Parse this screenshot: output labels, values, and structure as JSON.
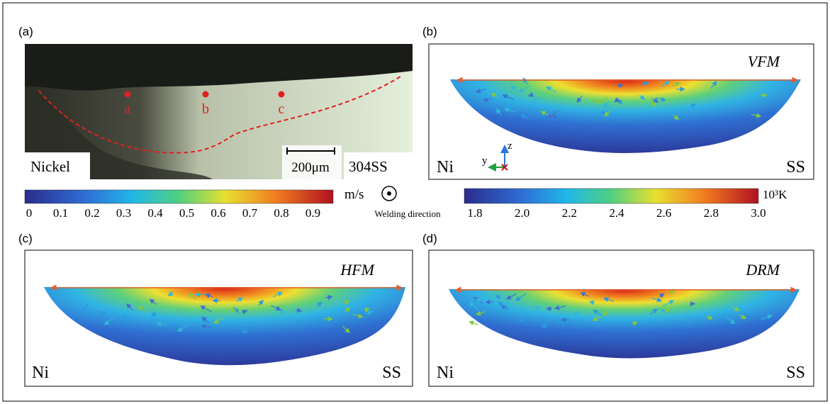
{
  "panel_a": {
    "label": "(a)",
    "points": [
      "a",
      "b",
      "c"
    ],
    "left_label": "Nickel",
    "right_label": "304SS",
    "scale_bar": "200μm"
  },
  "panel_b": {
    "label": "(b)",
    "model": "VFM",
    "left": "Ni",
    "right": "SS",
    "axes": [
      "z",
      "y"
    ]
  },
  "panel_c": {
    "label": "(c)",
    "model": "HFM",
    "left": "Ni",
    "right": "SS"
  },
  "panel_d": {
    "label": "(d)",
    "model": "DRM",
    "left": "Ni",
    "right": "SS"
  },
  "velocity_bar": {
    "unit": "m/s",
    "ticks": [
      "0",
      "0.1",
      "0.2",
      "0.3",
      "0.4",
      "0.5",
      "0.6",
      "0.7",
      "0.8",
      "0.9"
    ]
  },
  "welding_direction": "Welding direction",
  "temperature_bar": {
    "unit": "10³K",
    "ticks": [
      "1.8",
      "2.0",
      "2.2",
      "2.4",
      "2.6",
      "2.8",
      "3.0"
    ]
  }
}
